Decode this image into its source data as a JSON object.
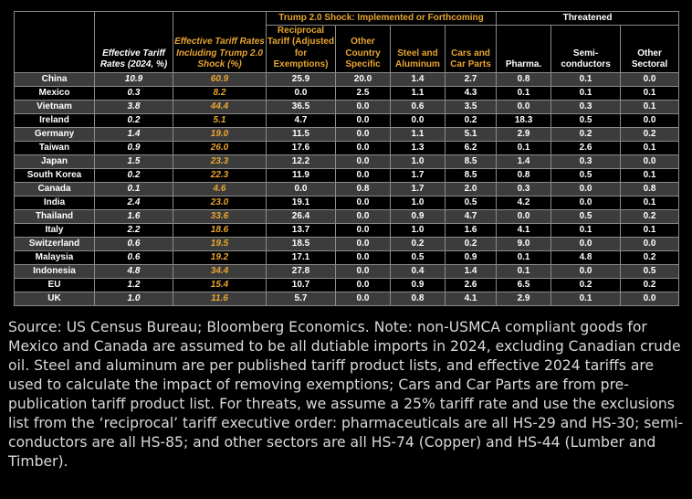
{
  "chart_data": {
    "type": "table",
    "columns": {
      "effective_2024": "Effective Tariff Rates (2024, %)",
      "incl_trump": "Effective Tariff Rates Including Trump 2.0 Shock (%)",
      "group_shock": "Trump 2.0 Shock: Implemented or Forthcoming",
      "reciprocal": "Reciprocal Tariff (Adjusted for Exemptions)",
      "country": "Other Country Specific",
      "steel": "Steel and Aluminum",
      "cars": "Cars and Car Parts",
      "group_threat": "Threatened",
      "pharma": "Pharma.",
      "semi": "Semi-conductors",
      "other": "Other Sectoral"
    },
    "rows": [
      {
        "country": "China",
        "values": [
          "10.9",
          "60.9",
          "25.9",
          "20.0",
          "1.4",
          "2.7",
          "0.8",
          "0.1",
          "0.0"
        ]
      },
      {
        "country": "Mexico",
        "values": [
          "0.3",
          "8.2",
          "0.0",
          "2.5",
          "1.1",
          "4.3",
          "0.1",
          "0.1",
          "0.1"
        ]
      },
      {
        "country": "Vietnam",
        "values": [
          "3.8",
          "44.4",
          "36.5",
          "0.0",
          "0.6",
          "3.5",
          "0.0",
          "0.3",
          "0.1"
        ]
      },
      {
        "country": "Ireland",
        "values": [
          "0.2",
          "5.1",
          "4.7",
          "0.0",
          "0.0",
          "0.2",
          "18.3",
          "0.5",
          "0.0"
        ]
      },
      {
        "country": "Germany",
        "values": [
          "1.4",
          "19.0",
          "11.5",
          "0.0",
          "1.1",
          "5.1",
          "2.9",
          "0.2",
          "0.2"
        ]
      },
      {
        "country": "Taiwan",
        "values": [
          "0.9",
          "26.0",
          "17.6",
          "0.0",
          "1.3",
          "6.2",
          "0.1",
          "2.6",
          "0.1"
        ]
      },
      {
        "country": "Japan",
        "values": [
          "1.5",
          "23.3",
          "12.2",
          "0.0",
          "1.0",
          "8.5",
          "1.4",
          "0.3",
          "0.0"
        ]
      },
      {
        "country": "South Korea",
        "values": [
          "0.2",
          "22.3",
          "11.9",
          "0.0",
          "1.7",
          "8.5",
          "0.8",
          "0.5",
          "0.1"
        ]
      },
      {
        "country": "Canada",
        "values": [
          "0.1",
          "4.6",
          "0.0",
          "0.8",
          "1.7",
          "2.0",
          "0.3",
          "0.0",
          "0.8"
        ]
      },
      {
        "country": "India",
        "values": [
          "2.4",
          "23.0",
          "19.1",
          "0.0",
          "1.0",
          "0.5",
          "4.2",
          "0.0",
          "0.1"
        ]
      },
      {
        "country": "Thailand",
        "values": [
          "1.6",
          "33.6",
          "26.4",
          "0.0",
          "0.9",
          "4.7",
          "0.0",
          "0.5",
          "0.2"
        ]
      },
      {
        "country": "Italy",
        "values": [
          "2.2",
          "18.6",
          "13.7",
          "0.0",
          "1.0",
          "1.6",
          "4.1",
          "0.1",
          "0.1"
        ]
      },
      {
        "country": "Switzerland",
        "values": [
          "0.6",
          "19.5",
          "18.5",
          "0.0",
          "0.2",
          "0.2",
          "9.0",
          "0.0",
          "0.0"
        ]
      },
      {
        "country": "Malaysia",
        "values": [
          "0.6",
          "19.2",
          "17.1",
          "0.0",
          "0.5",
          "0.9",
          "0.1",
          "4.8",
          "0.2"
        ]
      },
      {
        "country": "Indonesia",
        "values": [
          "4.8",
          "34.4",
          "27.8",
          "0.0",
          "0.4",
          "1.4",
          "0.1",
          "0.0",
          "0.5"
        ]
      },
      {
        "country": "EU",
        "values": [
          "1.2",
          "15.4",
          "10.7",
          "0.0",
          "0.9",
          "2.6",
          "6.5",
          "0.2",
          "0.2"
        ]
      },
      {
        "country": "UK",
        "values": [
          "1.0",
          "11.6",
          "5.7",
          "0.0",
          "0.8",
          "4.1",
          "2.9",
          "0.1",
          "0.0"
        ]
      }
    ]
  },
  "footer": {
    "note": "Source: US Census Bureau; Bloomberg Economics. Note: non-USMCA compliant goods for Mexico and Canada are assumed to be all dutiable imports in 2024, excluding Canadian crude oil. Steel and aluminum are per published tariff product lists, and effective 2024 tariffs are used to calculate the impact of removing exemptions; Cars and Car Parts are from pre-publication tariff product list. For threats, we assume a 25% tariff rate and use the exclusions list from the ‘reciprocal’ tariff executive order: pharmaceuticals are all HS-29 and HS-30; semi-conductors are all HS-85; and other sectors are all HS-74 (Copper) and HS-44 (Lumber and Timber)."
  },
  "colors": {
    "background": "#000000",
    "accent_orange": "#e8a531",
    "row_shade": "#3c3c3c",
    "text": "#ffffff"
  }
}
